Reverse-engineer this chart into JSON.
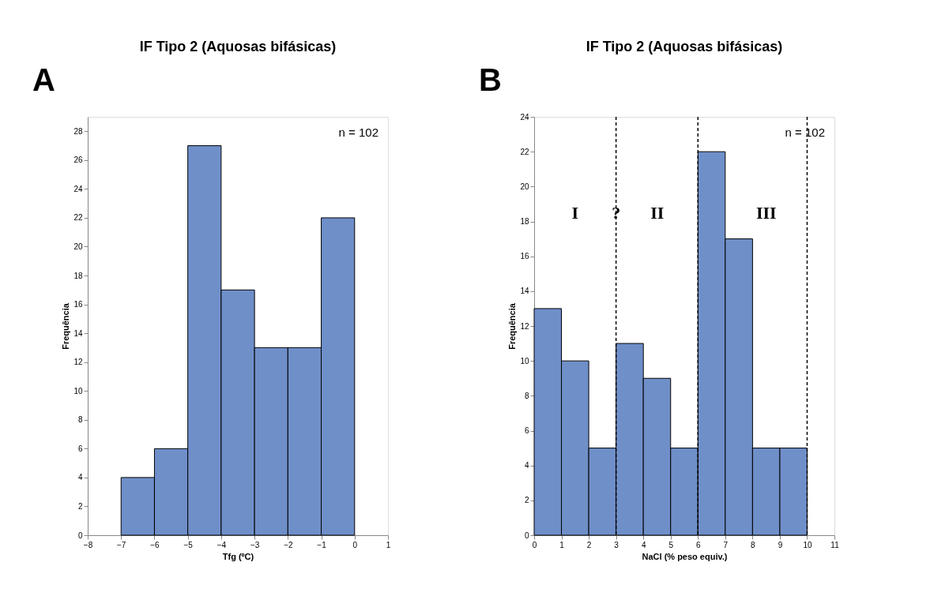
{
  "chart_data": [
    {
      "type": "histogram",
      "title": "IF Tipo 2 (Aquosas bifásicas)",
      "xlabel": "Tfg (ºC)",
      "ylabel": "Frequência",
      "color": "#6f8fc9",
      "bins": [
        -7,
        -6,
        -5,
        -4,
        -3,
        -2,
        -1,
        0
      ],
      "values": [
        4,
        6,
        27,
        17,
        13,
        13,
        22
      ],
      "xlim": [
        -8,
        1
      ],
      "xticks": [
        -8,
        -7,
        -6,
        -5,
        -4,
        -3,
        -2,
        -1,
        0,
        1
      ],
      "ylim": [
        0,
        29
      ],
      "yticks": [
        0,
        2,
        4,
        6,
        8,
        10,
        12,
        14,
        16,
        18,
        20,
        22,
        24,
        26,
        28
      ],
      "grid": false,
      "annotations": [
        "A",
        "n = 102"
      ]
    },
    {
      "type": "histogram",
      "title": "IF Tipo 2 (Aquosas bifásicas)",
      "xlabel": "NaCl (% peso equiv.)",
      "ylabel": "Frequência",
      "color": "#6f8fc9",
      "bins": [
        0,
        1,
        2,
        3,
        4,
        5,
        6,
        7,
        8,
        9,
        10
      ],
      "values": [
        13,
        10,
        5,
        11,
        9,
        5,
        22,
        17,
        5,
        5
      ],
      "xlim": [
        0,
        11
      ],
      "xticks": [
        0,
        1,
        2,
        3,
        4,
        5,
        6,
        7,
        8,
        9,
        10,
        11
      ],
      "ylim": [
        0,
        24
      ],
      "yticks": [
        0,
        2,
        4,
        6,
        8,
        10,
        12,
        14,
        16,
        18,
        20,
        22,
        24
      ],
      "grid": false,
      "ref_lines": [
        {
          "axis": "x",
          "value": 3,
          "line_style": "dashed",
          "color": "#000000"
        },
        {
          "axis": "x",
          "value": 6,
          "line_style": "dashed",
          "color": "#000000"
        },
        {
          "axis": "x",
          "value": 10,
          "line_style": "dashed",
          "color": "#000000"
        }
      ],
      "annotations": [
        "B",
        "n = 102",
        "I",
        "?",
        "II",
        "III"
      ]
    }
  ]
}
